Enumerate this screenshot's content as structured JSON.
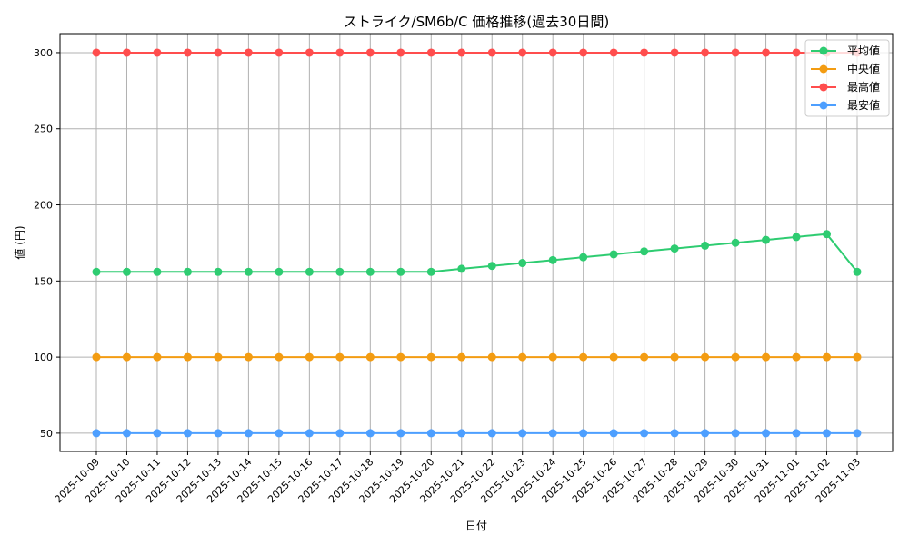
{
  "chart_data": {
    "type": "line",
    "title": "ストライク/SM6b/C 価格推移(過去30日間)",
    "xlabel": "日付",
    "ylabel": "値 (円)",
    "ylim": [
      38,
      312.5
    ],
    "yticks": [
      50,
      100,
      150,
      200,
      250,
      300
    ],
    "grid": true,
    "legend_position": "top-right",
    "x": [
      "2025-10-09",
      "2025-10-10",
      "2025-10-11",
      "2025-10-12",
      "2025-10-13",
      "2025-10-14",
      "2025-10-15",
      "2025-10-16",
      "2025-10-17",
      "2025-10-18",
      "2025-10-19",
      "2025-10-20",
      "2025-10-21",
      "2025-10-22",
      "2025-10-23",
      "2025-10-24",
      "2025-10-25",
      "2025-10-26",
      "2025-10-27",
      "2025-10-28",
      "2025-10-29",
      "2025-10-30",
      "2025-10-31",
      "2025-11-01",
      "2025-11-02",
      "2025-11-03"
    ],
    "series": [
      {
        "name": "平均値",
        "color": "#2ecc71",
        "values": [
          156,
          156,
          156,
          156,
          156,
          156,
          156,
          156,
          156,
          156,
          156,
          156,
          158,
          159.9,
          161.8,
          163.7,
          165.6,
          167.5,
          169.4,
          171.3,
          173.2,
          175.1,
          177,
          178.9,
          180.8,
          156
        ]
      },
      {
        "name": "中央値",
        "color": "#f39c12",
        "values": [
          100,
          100,
          100,
          100,
          100,
          100,
          100,
          100,
          100,
          100,
          100,
          100,
          100,
          100,
          100,
          100,
          100,
          100,
          100,
          100,
          100,
          100,
          100,
          100,
          100,
          100
        ]
      },
      {
        "name": "最高値",
        "color": "#ff4d4d",
        "values": [
          300,
          300,
          300,
          300,
          300,
          300,
          300,
          300,
          300,
          300,
          300,
          300,
          300,
          300,
          300,
          300,
          300,
          300,
          300,
          300,
          300,
          300,
          300,
          300,
          300,
          300
        ]
      },
      {
        "name": "最安値",
        "color": "#4d9fff",
        "values": [
          50,
          50,
          50,
          50,
          50,
          50,
          50,
          50,
          50,
          50,
          50,
          50,
          50,
          50,
          50,
          50,
          50,
          50,
          50,
          50,
          50,
          50,
          50,
          50,
          50,
          50
        ]
      }
    ]
  }
}
